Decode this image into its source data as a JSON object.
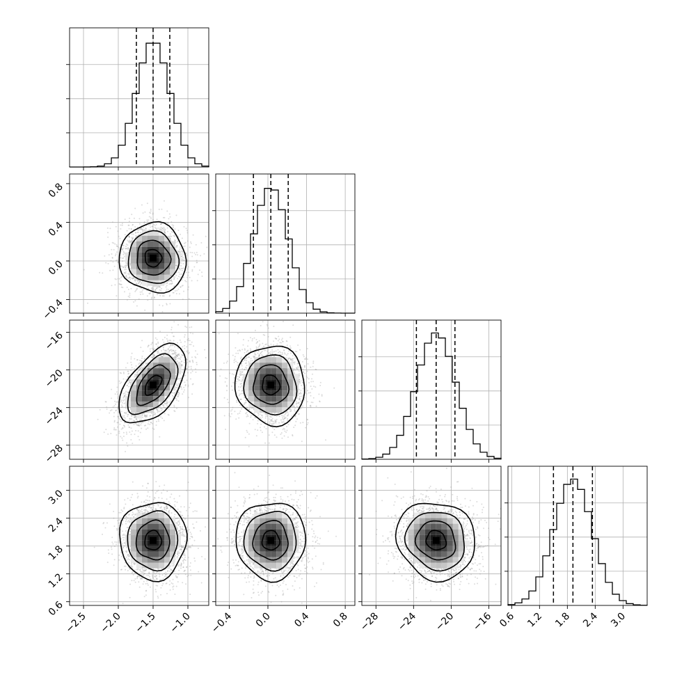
{
  "chart_data": {
    "type": "corner",
    "parameters": [
      {
        "center": -1.5,
        "sigma": 0.24,
        "range": [
          -2.7,
          -0.7
        ],
        "ticks": [
          -2.5,
          -2.0,
          -1.5,
          -1.0
        ],
        "tick_labels": [
          "−2.5",
          "−2.0",
          "−1.5",
          "−1.0"
        ],
        "quantiles": [
          -1.74,
          -1.5,
          -1.26
        ]
      },
      {
        "center": 0.03,
        "sigma": 0.18,
        "range": [
          -0.54,
          0.9
        ],
        "ticks": [
          -0.4,
          0.0,
          0.4,
          0.8
        ],
        "tick_labels": [
          "−0.4",
          "0.0",
          "0.4",
          "0.8"
        ],
        "quantiles": [
          -0.15,
          0.03,
          0.21
        ]
      },
      {
        "center": -21.6,
        "sigma": 2.1,
        "range": [
          -29.5,
          -14.7
        ],
        "ticks": [
          -28,
          -24,
          -20,
          -16
        ],
        "tick_labels": [
          "−28",
          "−24",
          "−20",
          "−16"
        ],
        "quantiles": [
          -23.7,
          -21.6,
          -19.6
        ]
      },
      {
        "center": 1.92,
        "sigma": 0.42,
        "range": [
          0.52,
          3.52
        ],
        "ticks": [
          0.6,
          1.2,
          1.8,
          2.4,
          3.0
        ],
        "tick_labels": [
          "0.6",
          "1.2",
          "1.8",
          "2.4",
          "3.0"
        ],
        "quantiles": [
          1.5,
          1.92,
          2.34
        ]
      }
    ],
    "correlations": {
      "1-0": -0.05,
      "2-0": 0.55,
      "2-1": -0.05,
      "3-0": 0.0,
      "3-1": 0.0,
      "3-2": -0.1
    },
    "histogram_bins": 20,
    "contour_levels_sigma": [
      0.5,
      1.0,
      1.5,
      2.0
    ],
    "grid": true,
    "title": "",
    "labels": []
  }
}
